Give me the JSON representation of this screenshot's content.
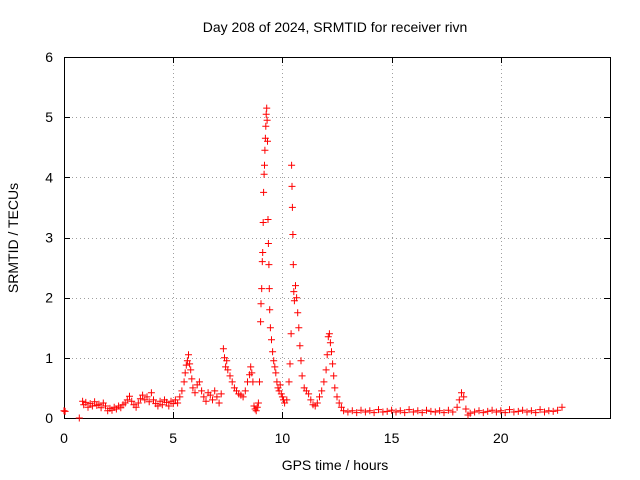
{
  "chart_data": {
    "type": "scatter",
    "title": "Day 208 of 2024, SRMTID for receiver rivn",
    "xlabel": "GPS time / hours",
    "ylabel": "SRMTID / TECUs",
    "xlim": [
      0,
      25
    ],
    "ylim": [
      0,
      6
    ],
    "xticks": [
      0,
      5,
      10,
      15,
      20
    ],
    "yticks": [
      0,
      1,
      2,
      3,
      4,
      5,
      6
    ],
    "grid": true,
    "marker": "plus",
    "marker_color": "#ff0000",
    "series": [
      {
        "name": "SRMTID",
        "points": [
          [
            0.0,
            0.12
          ],
          [
            0.05,
            0.11
          ],
          [
            0.7,
            0.0
          ],
          [
            0.85,
            0.28
          ],
          [
            0.9,
            0.22
          ],
          [
            1.0,
            0.26
          ],
          [
            1.1,
            0.18
          ],
          [
            1.2,
            0.24
          ],
          [
            1.3,
            0.2
          ],
          [
            1.4,
            0.27
          ],
          [
            1.5,
            0.21
          ],
          [
            1.6,
            0.23
          ],
          [
            1.7,
            0.17
          ],
          [
            1.8,
            0.25
          ],
          [
            1.9,
            0.2
          ],
          [
            2.0,
            0.12
          ],
          [
            2.1,
            0.16
          ],
          [
            2.2,
            0.13
          ],
          [
            2.3,
            0.18
          ],
          [
            2.4,
            0.15
          ],
          [
            2.5,
            0.2
          ],
          [
            2.6,
            0.17
          ],
          [
            2.7,
            0.22
          ],
          [
            2.8,
            0.25
          ],
          [
            2.9,
            0.3
          ],
          [
            3.0,
            0.36
          ],
          [
            3.1,
            0.28
          ],
          [
            3.2,
            0.22
          ],
          [
            3.3,
            0.18
          ],
          [
            3.4,
            0.25
          ],
          [
            3.5,
            0.32
          ],
          [
            3.6,
            0.38
          ],
          [
            3.7,
            0.3
          ],
          [
            3.8,
            0.35
          ],
          [
            3.9,
            0.27
          ],
          [
            4.0,
            0.42
          ],
          [
            4.1,
            0.3
          ],
          [
            4.2,
            0.24
          ],
          [
            4.3,
            0.2
          ],
          [
            4.4,
            0.28
          ],
          [
            4.5,
            0.22
          ],
          [
            4.6,
            0.3
          ],
          [
            4.7,
            0.26
          ],
          [
            4.8,
            0.2
          ],
          [
            4.9,
            0.28
          ],
          [
            5.0,
            0.24
          ],
          [
            5.1,
            0.3
          ],
          [
            5.2,
            0.25
          ],
          [
            5.3,
            0.35
          ],
          [
            5.4,
            0.45
          ],
          [
            5.5,
            0.6
          ],
          [
            5.55,
            0.75
          ],
          [
            5.6,
            0.88
          ],
          [
            5.65,
            0.95
          ],
          [
            5.7,
            1.05
          ],
          [
            5.75,
            0.9
          ],
          [
            5.8,
            0.8
          ],
          [
            5.85,
            0.65
          ],
          [
            5.9,
            0.5
          ],
          [
            6.0,
            0.42
          ],
          [
            6.1,
            0.55
          ],
          [
            6.2,
            0.6
          ],
          [
            6.3,
            0.45
          ],
          [
            6.4,
            0.35
          ],
          [
            6.5,
            0.28
          ],
          [
            6.6,
            0.42
          ],
          [
            6.7,
            0.38
          ],
          [
            6.8,
            0.3
          ],
          [
            6.9,
            0.45
          ],
          [
            7.0,
            0.35
          ],
          [
            7.1,
            0.25
          ],
          [
            7.2,
            0.4
          ],
          [
            7.3,
            1.15
          ],
          [
            7.35,
            1.0
          ],
          [
            7.4,
            0.85
          ],
          [
            7.45,
            0.95
          ],
          [
            7.5,
            0.8
          ],
          [
            7.6,
            0.7
          ],
          [
            7.7,
            0.6
          ],
          [
            7.8,
            0.5
          ],
          [
            7.9,
            0.45
          ],
          [
            8.0,
            0.4
          ],
          [
            8.1,
            0.38
          ],
          [
            8.2,
            0.35
          ],
          [
            8.3,
            0.45
          ],
          [
            8.4,
            0.6
          ],
          [
            8.5,
            0.72
          ],
          [
            8.55,
            0.85
          ],
          [
            8.6,
            0.75
          ],
          [
            8.65,
            0.6
          ],
          [
            8.7,
            0.2
          ],
          [
            8.75,
            0.15
          ],
          [
            8.8,
            0.12
          ],
          [
            8.85,
            0.18
          ],
          [
            8.9,
            0.25
          ],
          [
            8.95,
            0.6
          ],
          [
            9.0,
            1.6
          ],
          [
            9.02,
            1.9
          ],
          [
            9.05,
            2.15
          ],
          [
            9.08,
            2.6
          ],
          [
            9.1,
            2.75
          ],
          [
            9.12,
            3.25
          ],
          [
            9.14,
            3.75
          ],
          [
            9.16,
            4.05
          ],
          [
            9.18,
            4.2
          ],
          [
            9.2,
            4.45
          ],
          [
            9.22,
            4.65
          ],
          [
            9.24,
            4.85
          ],
          [
            9.26,
            5.05
          ],
          [
            9.28,
            5.15
          ],
          [
            9.3,
            4.95
          ],
          [
            9.32,
            4.6
          ],
          [
            9.34,
            3.3
          ],
          [
            9.36,
            2.9
          ],
          [
            9.38,
            2.55
          ],
          [
            9.4,
            2.15
          ],
          [
            9.42,
            1.8
          ],
          [
            9.45,
            1.5
          ],
          [
            9.5,
            1.3
          ],
          [
            9.55,
            1.1
          ],
          [
            9.6,
            0.95
          ],
          [
            9.65,
            0.85
          ],
          [
            9.7,
            0.75
          ],
          [
            9.75,
            0.6
          ],
          [
            9.8,
            0.5
          ],
          [
            9.85,
            0.45
          ],
          [
            9.9,
            0.55
          ],
          [
            9.95,
            0.4
          ],
          [
            10.0,
            0.35
          ],
          [
            10.05,
            0.3
          ],
          [
            10.1,
            0.25
          ],
          [
            10.2,
            0.3
          ],
          [
            10.3,
            0.6
          ],
          [
            10.35,
            0.9
          ],
          [
            10.4,
            1.4
          ],
          [
            10.42,
            4.2
          ],
          [
            10.44,
            3.85
          ],
          [
            10.46,
            3.5
          ],
          [
            10.48,
            3.05
          ],
          [
            10.5,
            2.55
          ],
          [
            10.52,
            2.1
          ],
          [
            10.55,
            1.95
          ],
          [
            10.6,
            2.2
          ],
          [
            10.65,
            2.0
          ],
          [
            10.7,
            1.75
          ],
          [
            10.75,
            1.5
          ],
          [
            10.8,
            1.2
          ],
          [
            10.85,
            0.95
          ],
          [
            10.9,
            0.7
          ],
          [
            11.0,
            0.5
          ],
          [
            11.1,
            0.45
          ],
          [
            11.2,
            0.4
          ],
          [
            11.3,
            0.3
          ],
          [
            11.4,
            0.22
          ],
          [
            11.5,
            0.2
          ],
          [
            11.6,
            0.25
          ],
          [
            11.7,
            0.35
          ],
          [
            11.8,
            0.45
          ],
          [
            11.9,
            0.6
          ],
          [
            12.0,
            0.8
          ],
          [
            12.05,
            1.05
          ],
          [
            12.1,
            1.35
          ],
          [
            12.15,
            1.4
          ],
          [
            12.2,
            1.25
          ],
          [
            12.25,
            1.1
          ],
          [
            12.3,
            0.9
          ],
          [
            12.35,
            0.7
          ],
          [
            12.4,
            0.5
          ],
          [
            12.5,
            0.35
          ],
          [
            12.6,
            0.25
          ],
          [
            12.7,
            0.18
          ],
          [
            12.8,
            0.12
          ],
          [
            13.0,
            0.1
          ],
          [
            13.2,
            0.12
          ],
          [
            13.4,
            0.09
          ],
          [
            13.6,
            0.13
          ],
          [
            13.8,
            0.1
          ],
          [
            14.0,
            0.12
          ],
          [
            14.2,
            0.09
          ],
          [
            14.4,
            0.14
          ],
          [
            14.6,
            0.1
          ],
          [
            14.8,
            0.11
          ],
          [
            15.0,
            0.13
          ],
          [
            15.2,
            0.1
          ],
          [
            15.4,
            0.12
          ],
          [
            15.6,
            0.09
          ],
          [
            15.8,
            0.14
          ],
          [
            16.0,
            0.1
          ],
          [
            16.2,
            0.12
          ],
          [
            16.4,
            0.09
          ],
          [
            16.6,
            0.13
          ],
          [
            16.8,
            0.11
          ],
          [
            17.0,
            0.1
          ],
          [
            17.2,
            0.12
          ],
          [
            17.4,
            0.09
          ],
          [
            17.6,
            0.13
          ],
          [
            17.8,
            0.1
          ],
          [
            18.0,
            0.18
          ],
          [
            18.1,
            0.3
          ],
          [
            18.2,
            0.42
          ],
          [
            18.3,
            0.35
          ],
          [
            18.4,
            0.15
          ],
          [
            18.5,
            0.05
          ],
          [
            18.6,
            0.08
          ],
          [
            18.8,
            0.1
          ],
          [
            19.0,
            0.12
          ],
          [
            19.2,
            0.09
          ],
          [
            19.4,
            0.11
          ],
          [
            19.6,
            0.13
          ],
          [
            19.8,
            0.1
          ],
          [
            20.0,
            0.12
          ],
          [
            20.2,
            0.09
          ],
          [
            20.4,
            0.14
          ],
          [
            20.6,
            0.1
          ],
          [
            20.8,
            0.11
          ],
          [
            21.0,
            0.13
          ],
          [
            21.2,
            0.1
          ],
          [
            21.4,
            0.12
          ],
          [
            21.6,
            0.09
          ],
          [
            21.8,
            0.14
          ],
          [
            22.0,
            0.1
          ],
          [
            22.2,
            0.12
          ],
          [
            22.4,
            0.11
          ],
          [
            22.6,
            0.13
          ],
          [
            22.8,
            0.18
          ]
        ]
      }
    ]
  }
}
